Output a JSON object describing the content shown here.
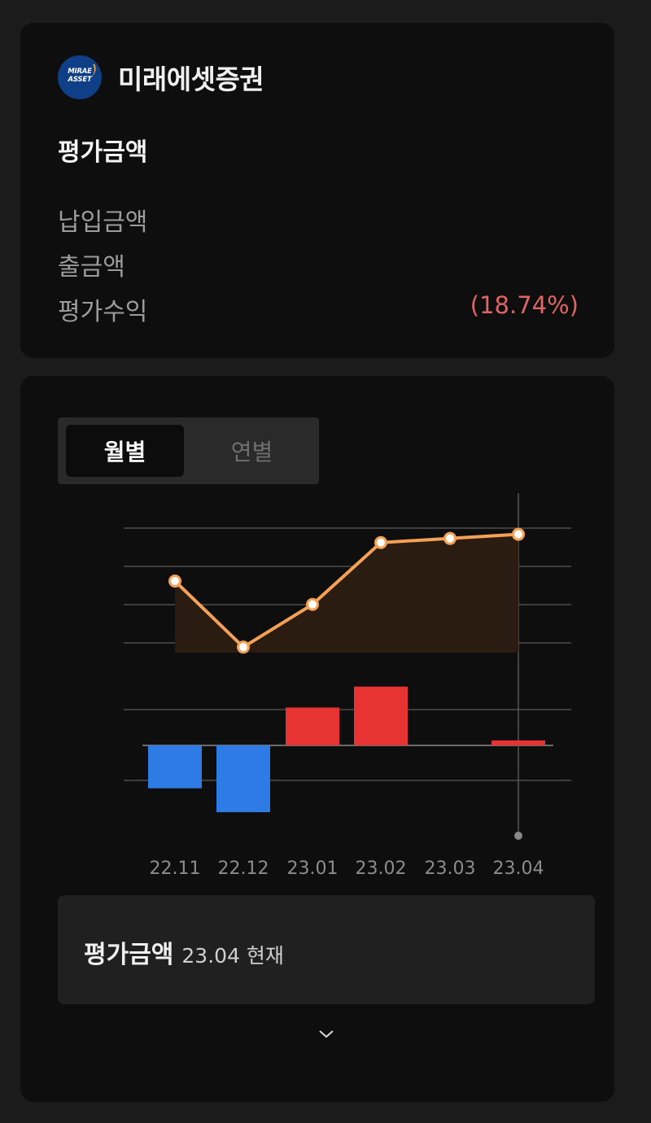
{
  "summary": {
    "brand_name": "미래에셋증권",
    "logo_text_line1": "MIRAE",
    "logo_text_line2": "ASSET",
    "eval_title": "평가금액",
    "deposit_label": "납입금액",
    "withdraw_label": "출금액",
    "profit_label": "평가수익",
    "profit_pct": "(18.74%)",
    "profit_color": "#e06464"
  },
  "toggle": {
    "monthly_label": "월별",
    "yearly_label": "연별",
    "active": "monthly"
  },
  "chart_data": {
    "type": "bar+line",
    "categories": [
      "22.11",
      "22.12",
      "23.01",
      "23.02",
      "23.03",
      "23.04"
    ],
    "line_values": [
      55,
      7,
      38,
      83,
      86,
      89
    ],
    "bar_values": [
      -43,
      -67,
      38,
      59,
      0,
      5
    ],
    "bar_positive_color": "#e83333",
    "bar_negative_color": "#2f7be6",
    "line_color": "#f4a055",
    "selected_category": "23.04"
  },
  "info": {
    "label": "평가금액",
    "sub": "23.04 현재"
  },
  "icons": {
    "expand": "chevron-down-icon"
  }
}
